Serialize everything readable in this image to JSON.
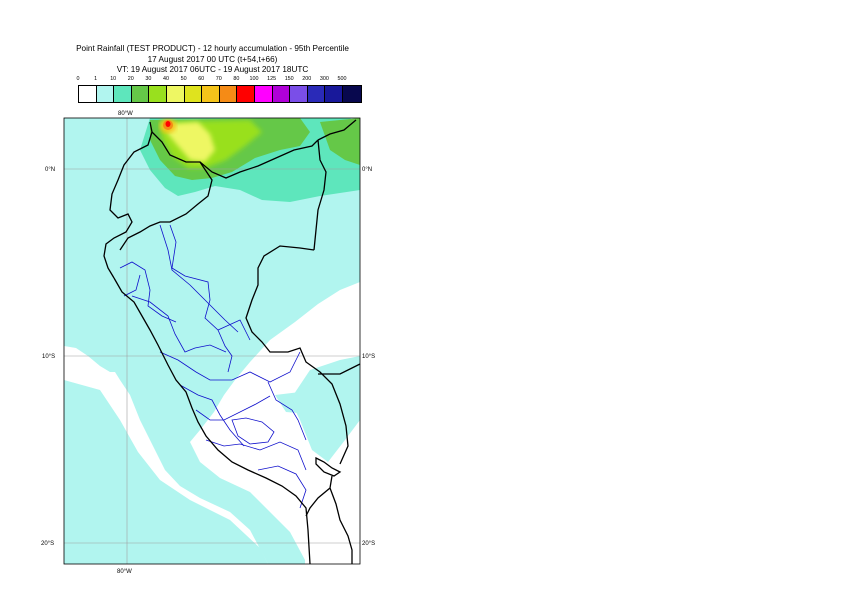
{
  "title": {
    "line1": "Point Rainfall (TEST PRODUCT) - 12 hourly accumulation - 95th Percentile",
    "line2": "17 August 2017 00 UTC (t+54,t+66)",
    "line3": "VT: 19 August 2017 06UTC - 19 August 2017 18UTC"
  },
  "legend": {
    "ticks": [
      "0",
      "1",
      "10",
      "20",
      "30",
      "40",
      "50",
      "60",
      "70",
      "80",
      "100",
      "125",
      "150",
      "200",
      "300",
      "500"
    ],
    "colors": [
      "#ffffff",
      "#b1f5ef",
      "#5ee6bc",
      "#65c848",
      "#99e01e",
      "#eef763",
      "#dfe31e",
      "#f5c41a",
      "#f58b16",
      "#ff0000",
      "#ff00ff",
      "#b000d8",
      "#7a4ee8",
      "#2a2ab8",
      "#18189a",
      "#08084e"
    ]
  },
  "map": {
    "labels": {
      "lon_top": "80°W",
      "lon_bottom": "80°W",
      "lat_0_left": "0°N",
      "lat_0_right": "0°N",
      "lat_10_left": "10°S",
      "lat_10_right": "10°S",
      "lat_20_left": "20°S",
      "lat_20_right": "20°S"
    },
    "colors": {
      "rain_light": "#b1f5ef",
      "rain_10": "#5ee6bc",
      "rain_20": "#65c848",
      "rain_30": "#99e01e",
      "rain_40": "#eef763",
      "rain_60": "#f5c41a",
      "rain_70": "#f58b16",
      "rain_80": "#ff0000",
      "coastline": "#000000",
      "regions": "#1010cc",
      "grid": "#a0a0a0"
    }
  }
}
